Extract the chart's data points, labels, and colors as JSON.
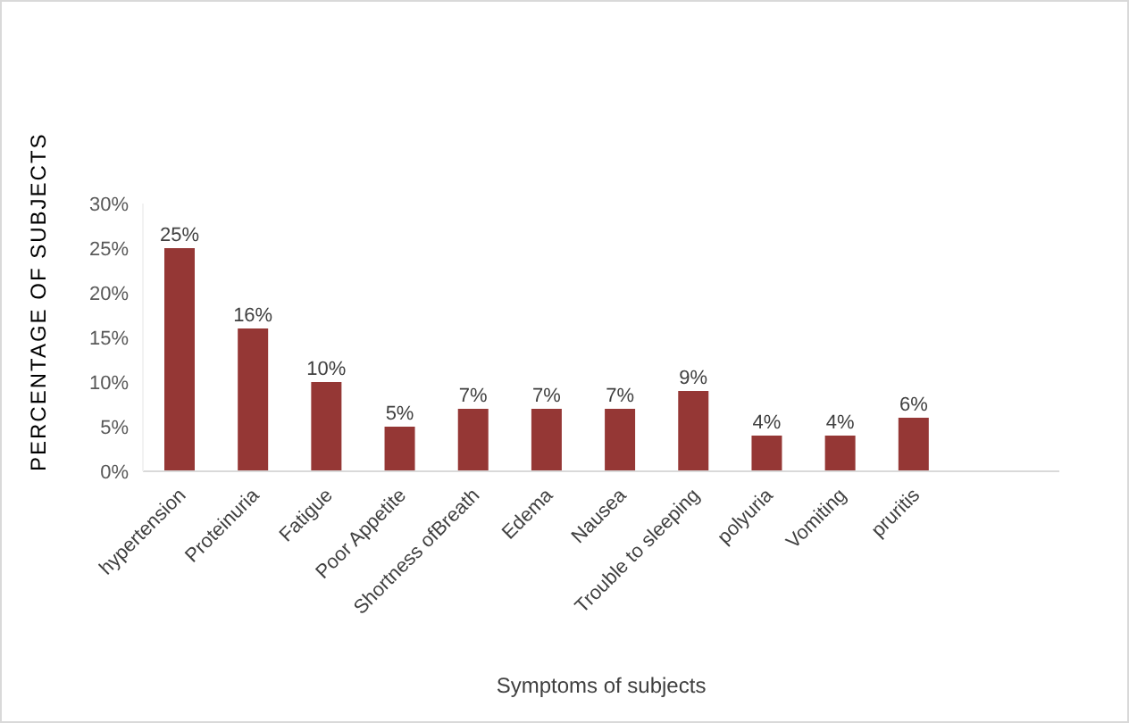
{
  "chart_data": {
    "type": "bar",
    "xlabel": "Symptoms of subjects",
    "ylabel": "PERCENTAGE OF SUBJECTS",
    "categories": [
      "hypertension",
      "Proteinuria",
      "Fatigue",
      "Poor Appetite",
      "Shortness ofBreath",
      "Edema",
      "Nausea",
      "Trouble to sleeping",
      "polyuria",
      "Vomiting",
      "pruritis"
    ],
    "values": [
      25,
      16,
      10,
      5,
      7,
      7,
      7,
      9,
      4,
      4,
      6
    ],
    "value_labels": [
      "25%",
      "16%",
      "10%",
      "5%",
      "7%",
      "7%",
      "7%",
      "9%",
      "4%",
      "4%",
      "6%"
    ],
    "color": "#953735",
    "ylim": [
      0,
      30
    ],
    "yticks": [
      {
        "value": 0,
        "label": "0%"
      },
      {
        "value": 5,
        "label": "5%"
      },
      {
        "value": 10,
        "label": "10%"
      },
      {
        "value": 15,
        "label": "15%"
      },
      {
        "value": 20,
        "label": "20%"
      },
      {
        "value": 25,
        "label": "25%"
      },
      {
        "value": 30,
        "label": "30%"
      }
    ],
    "grid": false,
    "legend": false
  }
}
